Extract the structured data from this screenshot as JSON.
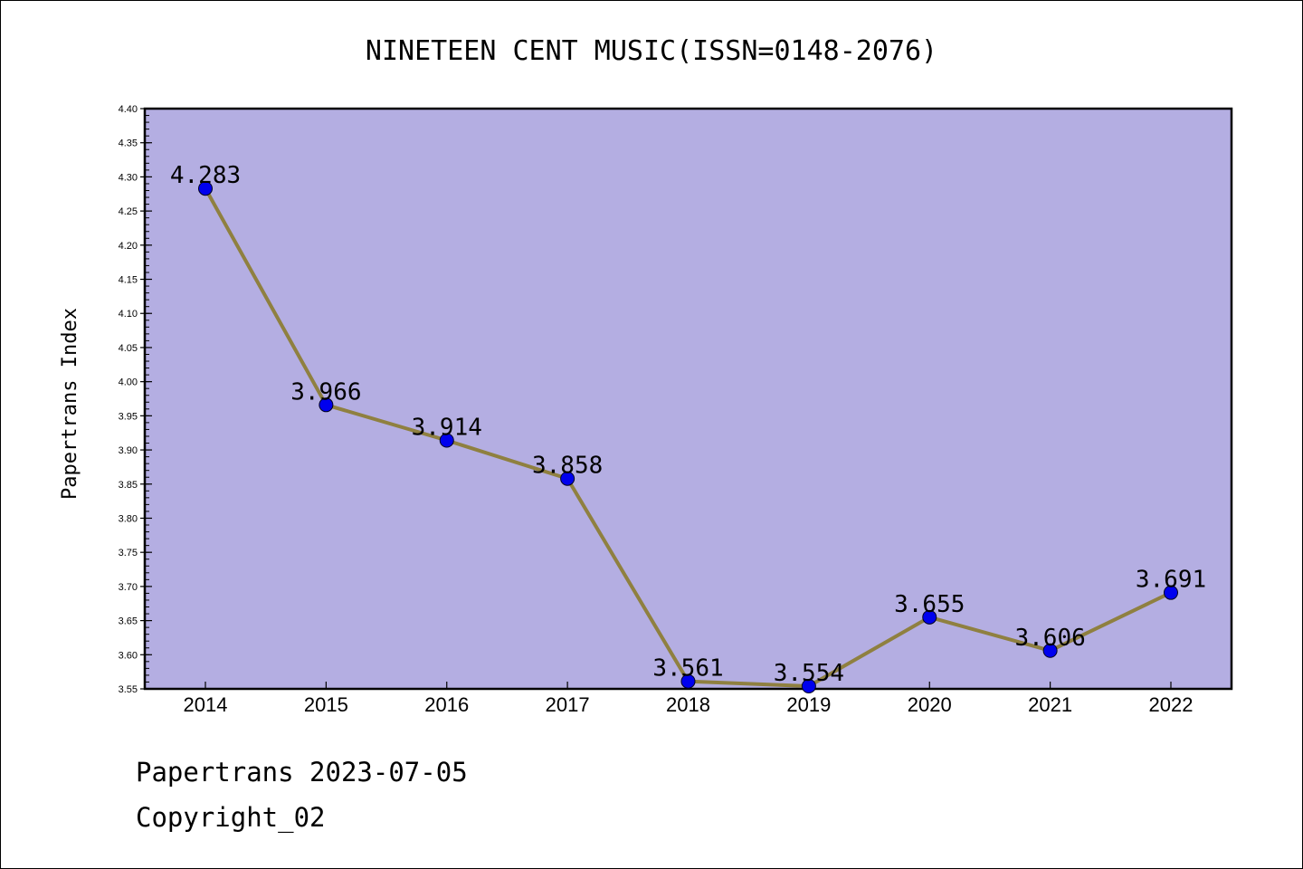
{
  "chart_data": {
    "type": "line",
    "title": "NINETEEN CENT MUSIC(ISSN=0148-2076)",
    "xlabel": "",
    "ylabel": "Papertrans Index",
    "categories": [
      "2014",
      "2015",
      "2016",
      "2017",
      "2018",
      "2019",
      "2020",
      "2021",
      "2022"
    ],
    "series": [
      {
        "values": [
          4.283,
          3.966,
          3.914,
          3.858,
          3.561,
          3.554,
          3.655,
          3.606,
          3.691
        ],
        "labels": [
          "4.283",
          "3.966",
          "3.914",
          "3.858",
          "3.561",
          "3.554",
          "3.655",
          "3.606",
          "3.691"
        ]
      }
    ],
    "ylim": [
      3.55,
      4.4
    ],
    "yticks": [
      "3.55",
      "3.60",
      "3.65",
      "3.70",
      "3.75",
      "3.80",
      "3.85",
      "3.90",
      "3.95",
      "4.00",
      "4.05",
      "4.10",
      "4.15",
      "4.20",
      "4.25",
      "4.30",
      "4.35",
      "4.40"
    ],
    "grid": false,
    "legend": "none",
    "colors": {
      "plot_background": "#b4aee2",
      "line": "#8f8040",
      "marker": "#0000ee"
    }
  },
  "footer": {
    "line1": "Papertrans 2023-07-05",
    "line2": "Copyright_02"
  }
}
